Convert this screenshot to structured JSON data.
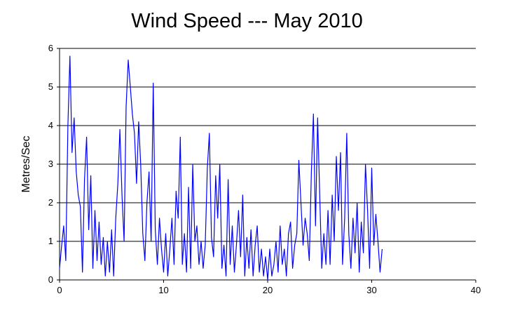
{
  "chart_data": {
    "type": "line",
    "title": "Wind Speed --- May 2010",
    "xlabel": "",
    "ylabel": "Metres/Sec",
    "xlim": [
      0,
      40
    ],
    "ylim": [
      0,
      6
    ],
    "x_ticks": [
      0,
      10,
      20,
      30,
      40
    ],
    "y_ticks": [
      0,
      1,
      2,
      3,
      4,
      5,
      6
    ],
    "grid": "horizontal",
    "series_color": "#0000ff",
    "series": [
      {
        "x": [
          0.0,
          0.2,
          0.4,
          0.6,
          0.8,
          1.0,
          1.2,
          1.4,
          1.6,
          1.8,
          2.0,
          2.2,
          2.4,
          2.6,
          2.8,
          3.0,
          3.2,
          3.4,
          3.6,
          3.8,
          4.0,
          4.2,
          4.4,
          4.6,
          4.8,
          5.0,
          5.2,
          5.4,
          5.6,
          5.8,
          6.0,
          6.2,
          6.4,
          6.6,
          6.8,
          7.0,
          7.2,
          7.4,
          7.6,
          7.8,
          8.0,
          8.2,
          8.4,
          8.6,
          8.8,
          9.0,
          9.2,
          9.4,
          9.6,
          9.8,
          10.0,
          10.2,
          10.4,
          10.6,
          10.8,
          11.0,
          11.2,
          11.4,
          11.6,
          11.8,
          12.0,
          12.2,
          12.4,
          12.6,
          12.8,
          13.0,
          13.2,
          13.4,
          13.6,
          13.8,
          14.0,
          14.2,
          14.4,
          14.6,
          14.8,
          15.0,
          15.2,
          15.4,
          15.6,
          15.8,
          16.0,
          16.2,
          16.4,
          16.6,
          16.8,
          17.0,
          17.2,
          17.4,
          17.6,
          17.8,
          18.0,
          18.2,
          18.4,
          18.6,
          18.8,
          19.0,
          19.2,
          19.4,
          19.6,
          19.8,
          20.0,
          20.2,
          20.4,
          20.6,
          20.8,
          21.0,
          21.2,
          21.4,
          21.6,
          21.8,
          22.0,
          22.2,
          22.4,
          22.6,
          22.8,
          23.0,
          23.2,
          23.4,
          23.6,
          23.8,
          24.0,
          24.2,
          24.4,
          24.6,
          24.8,
          25.0,
          25.2,
          25.4,
          25.6,
          25.8,
          26.0,
          26.2,
          26.4,
          26.6,
          26.8,
          27.0,
          27.2,
          27.4,
          27.6,
          27.8,
          28.0,
          28.2,
          28.4,
          28.6,
          28.8,
          29.0,
          29.2,
          29.4,
          29.6,
          29.8,
          30.0,
          30.2,
          30.4,
          30.6,
          30.8,
          31.0
        ],
        "y": [
          0.3,
          0.9,
          1.4,
          0.5,
          4.0,
          5.8,
          3.3,
          4.2,
          2.8,
          2.2,
          1.9,
          0.2,
          2.6,
          3.7,
          1.3,
          2.7,
          0.3,
          1.8,
          0.5,
          1.5,
          0.4,
          1.1,
          0.1,
          1.0,
          0.2,
          1.3,
          0.1,
          1.6,
          2.5,
          3.9,
          2.2,
          1.0,
          4.5,
          5.7,
          5.0,
          4.3,
          3.8,
          2.5,
          4.1,
          3.0,
          1.2,
          0.5,
          2.0,
          2.8,
          1.0,
          5.1,
          1.3,
          0.4,
          1.6,
          0.8,
          0.2,
          1.2,
          0.1,
          0.8,
          1.6,
          0.4,
          2.3,
          1.6,
          3.7,
          0.4,
          1.2,
          0.2,
          2.4,
          0.3,
          3.0,
          1.0,
          1.4,
          0.4,
          1.0,
          0.3,
          0.9,
          2.9,
          3.8,
          1.1,
          0.6,
          2.7,
          1.6,
          3.0,
          0.3,
          0.9,
          0.1,
          2.6,
          0.4,
          1.4,
          0.2,
          0.9,
          1.8,
          0.6,
          2.2,
          0.1,
          1.1,
          0.3,
          1.3,
          0.1,
          0.9,
          1.4,
          0.2,
          0.8,
          0.1,
          0.6,
          0.0,
          0.8,
          0.1,
          0.4,
          1.0,
          0.2,
          1.4,
          0.4,
          0.8,
          0.1,
          1.2,
          1.5,
          0.3,
          0.9,
          1.2,
          3.1,
          2.0,
          0.9,
          1.6,
          1.2,
          0.5,
          2.8,
          4.3,
          1.4,
          4.2,
          2.2,
          0.3,
          1.2,
          0.4,
          1.8,
          0.4,
          2.2,
          1.0,
          3.2,
          1.8,
          3.3,
          0.4,
          1.6,
          3.8,
          1.2,
          0.3,
          1.6,
          0.7,
          2.0,
          0.2,
          1.5,
          0.7,
          3.0,
          1.8,
          0.3,
          2.9,
          0.9,
          1.7,
          1.0,
          0.2,
          0.8
        ]
      }
    ]
  }
}
